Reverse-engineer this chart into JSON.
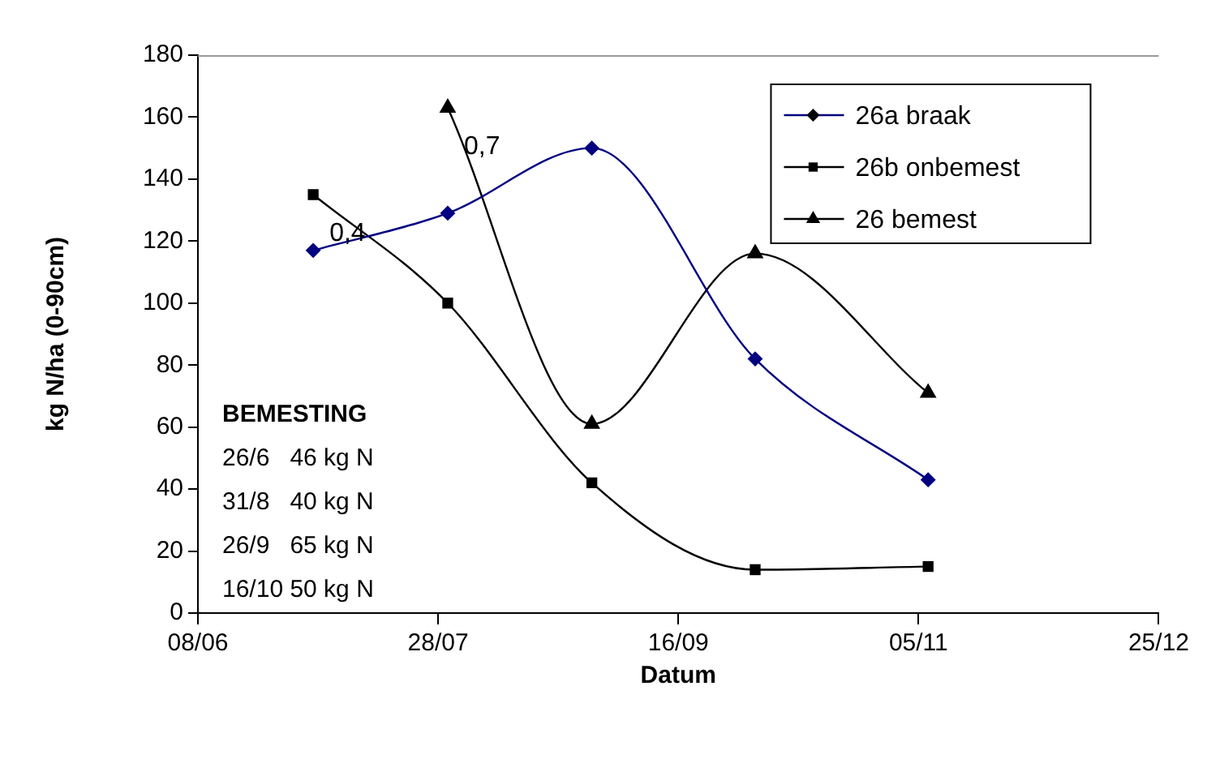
{
  "chart_data": {
    "type": "line",
    "xlabel": "Datum",
    "ylabel": "kg N/ha (0-90cm)",
    "xlim": [
      "--06-08",
      "--12-25"
    ],
    "xticks": [
      {
        "value": "--06-08",
        "label": "08/06"
      },
      {
        "value": "--07-28",
        "label": "28/07"
      },
      {
        "value": "--09-16",
        "label": "16/09"
      },
      {
        "value": "--11-05",
        "label": "05/11"
      },
      {
        "value": "--12-25",
        "label": "25/12"
      }
    ],
    "ylim": [
      0,
      180
    ],
    "yticks": [
      0,
      20,
      40,
      60,
      80,
      100,
      120,
      140,
      160,
      180
    ],
    "grid": false,
    "legend": "top right",
    "series": [
      {
        "name": "26a braak",
        "color": "#000080",
        "marker": "diamond",
        "x": [
          "--07-02",
          "--07-30",
          "--08-29",
          "--10-02",
          "--11-07"
        ],
        "values": [
          117,
          129,
          150,
          82,
          43
        ]
      },
      {
        "name": "26b onbemest",
        "color": "#000000",
        "marker": "square",
        "x": [
          "--07-02",
          "--07-30",
          "--08-29",
          "--10-02",
          "--11-07"
        ],
        "values": [
          135,
          100,
          42,
          14,
          15
        ]
      },
      {
        "name": "26 bemest",
        "color": "#000000",
        "marker": "triangle",
        "x": [
          "--07-30",
          "--08-29",
          "--10-02",
          "--11-07"
        ],
        "values": [
          163,
          61,
          116,
          71
        ]
      }
    ],
    "annotations": [
      {
        "text": "0,4",
        "x": "--07-02",
        "y": 135
      },
      {
        "text": "0,7",
        "x": "--07-30",
        "y": 163
      },
      "BEMESTING",
      "26/6   46 kg N",
      "31/8   40 kg N",
      "26/9   65 kg N",
      "16/10 50 kg N"
    ]
  }
}
